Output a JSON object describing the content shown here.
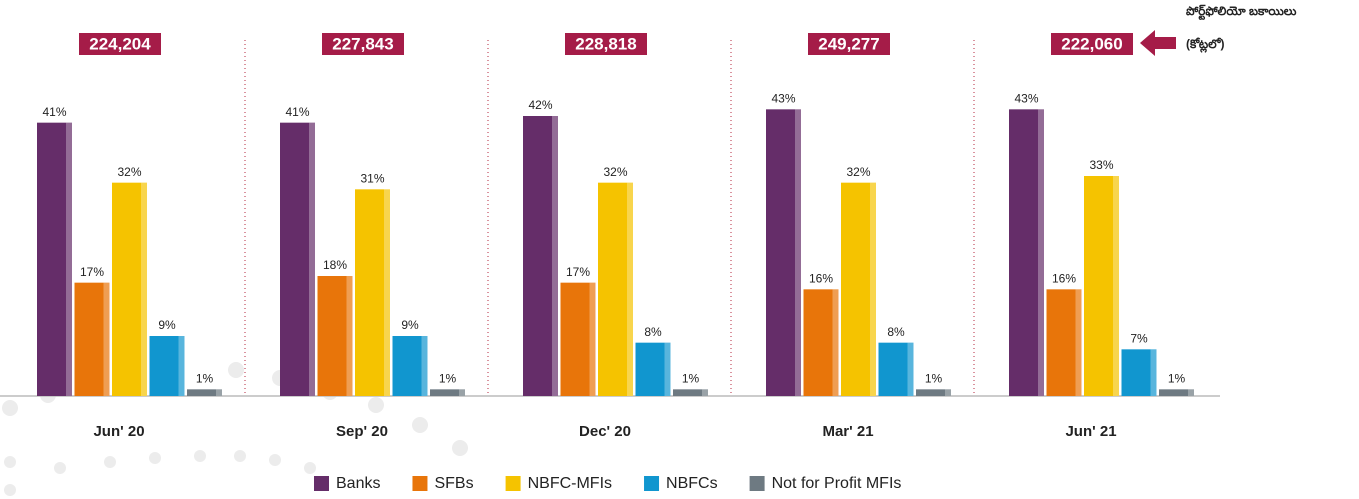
{
  "chart_data": {
    "type": "bar",
    "categories": [
      "Jun' 20",
      "Sep' 20",
      "Dec' 20",
      "Mar' 21",
      "Jun' 21"
    ],
    "series": [
      {
        "name": "Banks",
        "color": "#652d69",
        "values": [
          41,
          41,
          42,
          43,
          43
        ],
        "value_labels": [
          "41%",
          "41%",
          "42%",
          "43%",
          "43%"
        ]
      },
      {
        "name": "SFBs",
        "color": "#e8750a",
        "values": [
          17,
          18,
          17,
          16,
          16
        ],
        "value_labels": [
          "17%",
          "18%",
          "17%",
          "16%",
          "16%"
        ]
      },
      {
        "name": "NBFC-MFIs",
        "color": "#f5c300",
        "values": [
          32,
          31,
          32,
          32,
          33
        ],
        "value_labels": [
          "32%",
          "31%",
          "32%",
          "32%",
          "33%"
        ]
      },
      {
        "name": "NBFCs",
        "color": "#1196cf",
        "values": [
          9,
          9,
          8,
          8,
          7
        ],
        "value_labels": [
          "9%",
          "9%",
          "8%",
          "8%",
          "7%"
        ]
      },
      {
        "name": "Not for Profit MFIs",
        "color": "#6e7a82",
        "values": [
          1,
          1,
          1,
          1,
          1
        ],
        "value_labels": [
          "1%",
          "1%",
          "1%",
          "1%",
          "1%"
        ]
      }
    ],
    "totals": [
      224204,
      227843,
      228818,
      249277,
      222060
    ],
    "total_labels": [
      "224,204",
      "227,843",
      "228,818",
      "249,277",
      "222,060"
    ],
    "annotation": [
      "పోర్ట్‌ఫోలియో బకాయిలు",
      "(కోట్లలో)"
    ],
    "ylim": [
      0,
      45
    ]
  }
}
